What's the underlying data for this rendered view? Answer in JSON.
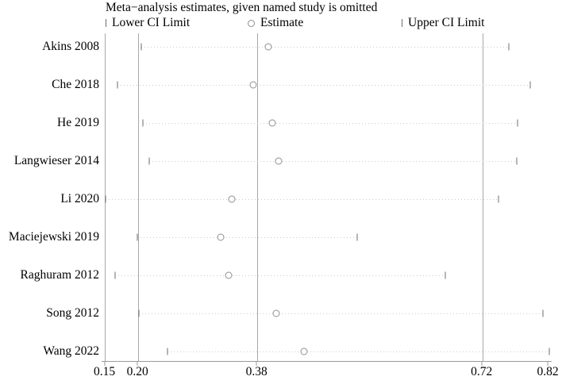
{
  "title": "Meta−analysis estimates, given named study is omitted",
  "legend": {
    "lower": {
      "marker": "vertical-bar-icon",
      "label": "Lower CI Limit"
    },
    "estimate": {
      "marker": "circle-icon",
      "label": "Estimate"
    },
    "upper": {
      "marker": "vertical-bar-icon",
      "label": "Upper CI Limit"
    }
  },
  "chart_data": {
    "type": "forest",
    "subtype": "leave-one-out-sensitivity",
    "title": "Meta−analysis estimates, given named study is omitted",
    "xlabel": "",
    "ylabel": "",
    "xlim": [
      0.15,
      0.82
    ],
    "x_ticks": [
      0.15,
      0.2,
      0.38,
      0.72,
      0.82
    ],
    "x_tick_labels": [
      "0.15",
      "0.20",
      "0.38",
      "0.72",
      "0.82"
    ],
    "gridline_values": [
      0.2,
      0.38,
      0.72
    ],
    "grid": "vertical-reference-lines",
    "legend_position": "top",
    "overall": {
      "lower": 0.2,
      "estimate": 0.38,
      "upper": 0.72
    },
    "studies": [
      {
        "label": "Akins 2008",
        "lower": 0.205,
        "estimate": 0.397,
        "upper": 0.76
      },
      {
        "label": "Che 2018",
        "lower": 0.169,
        "estimate": 0.374,
        "upper": 0.792
      },
      {
        "label": "He 2019",
        "lower": 0.207,
        "estimate": 0.402,
        "upper": 0.773
      },
      {
        "label": "Langwieser 2014",
        "lower": 0.216,
        "estimate": 0.412,
        "upper": 0.772
      },
      {
        "label": "Li 2020",
        "lower": 0.151,
        "estimate": 0.341,
        "upper": 0.745
      },
      {
        "label": "Maciejewski 2019",
        "lower": 0.199,
        "estimate": 0.325,
        "upper": 0.531
      },
      {
        "label": "Raghuram 2012",
        "lower": 0.165,
        "estimate": 0.336,
        "upper": 0.664
      },
      {
        "label": "Song 2012",
        "lower": 0.201,
        "estimate": 0.409,
        "upper": 0.812
      },
      {
        "label": "Wang 2022",
        "lower": 0.244,
        "estimate": 0.45,
        "upper": 0.821
      }
    ],
    "colors": {
      "background": "#ffffff",
      "text": "#000000",
      "gridline": "#a8a8a8",
      "axis_line": "#9a9a9a",
      "ci_tick": "#6e6e6e",
      "estimate_circle_stroke": "#8f8f8f",
      "dotted_ci_line": "#cccccc"
    }
  }
}
